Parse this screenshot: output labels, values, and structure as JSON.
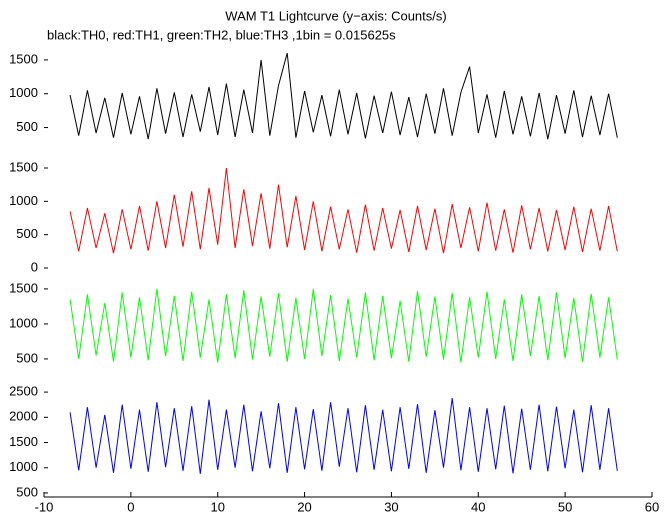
{
  "chart_data": [
    {
      "type": "line",
      "title": "WAM T1 Lightcurve (y−axis: Counts/s)",
      "subtitle": "black:TH0, red:TH1, green:TH2, blue:TH3 ,1bin = 0.015625s",
      "xlim": [
        -10,
        60
      ],
      "ylim": [
        50,
        1720
      ],
      "yticks": [
        500,
        1000,
        1500
      ],
      "x": [
        -7,
        -6,
        -5,
        -4,
        -3,
        -2,
        -1,
        0,
        1,
        2,
        3,
        4,
        5,
        6,
        7,
        8,
        9,
        10,
        11,
        12,
        13,
        14,
        15,
        16,
        17,
        18,
        19,
        20,
        21,
        22,
        23,
        24,
        25,
        26,
        27,
        28,
        29,
        30,
        31,
        32,
        33,
        34,
        35,
        36,
        37,
        38,
        39,
        40,
        41,
        42,
        43,
        44,
        45,
        46,
        47,
        48,
        49,
        50,
        51,
        52,
        53,
        54,
        55,
        56
      ],
      "series": [
        {
          "color": "#000000",
          "values": [
            980,
            380,
            1050,
            420,
            940,
            350,
            1010,
            400,
            960,
            330,
            1080,
            410,
            1020,
            360,
            990,
            440,
            1100,
            390,
            1150,
            360,
            1060,
            420,
            1500,
            380,
            1120,
            1600,
            350,
            1040,
            430,
            980,
            370,
            1060,
            400,
            1010,
            340,
            970,
            420,
            1030,
            390,
            950,
            360,
            1000,
            410,
            1080,
            380,
            1020,
            1400,
            420,
            990,
            350,
            1040,
            400,
            960,
            370,
            1010,
            330,
            980,
            410,
            1050,
            360,
            970,
            390,
            1000,
            350
          ]
        }
      ]
    },
    {
      "type": "line",
      "xlim": [
        -10,
        60
      ],
      "ylim": [
        -30,
        1650
      ],
      "yticks": [
        0,
        500,
        1000,
        1500
      ],
      "x": [
        -7,
        -6,
        -5,
        -4,
        -3,
        -2,
        -1,
        0,
        1,
        2,
        3,
        4,
        5,
        6,
        7,
        8,
        9,
        10,
        11,
        12,
        13,
        14,
        15,
        16,
        17,
        18,
        19,
        20,
        21,
        22,
        23,
        24,
        25,
        26,
        27,
        28,
        29,
        30,
        31,
        32,
        33,
        34,
        35,
        36,
        37,
        38,
        39,
        40,
        41,
        42,
        43,
        44,
        45,
        46,
        47,
        48,
        49,
        50,
        51,
        52,
        53,
        54,
        55,
        56
      ],
      "series": [
        {
          "color": "#ff0000",
          "values": [
            850,
            250,
            900,
            300,
            820,
            220,
            880,
            280,
            930,
            260,
            1000,
            300,
            1100,
            320,
            1150,
            280,
            1200,
            350,
            1500,
            300,
            1180,
            330,
            1120,
            290,
            1250,
            310,
            1080,
            270,
            1000,
            250,
            920,
            280,
            880,
            230,
            950,
            260,
            900,
            290,
            870,
            240,
            930,
            270,
            890,
            220,
            960,
            300,
            910,
            250,
            980,
            260,
            880,
            230,
            940,
            280,
            900,
            250,
            870,
            270,
            920,
            240,
            890,
            260,
            930,
            250
          ]
        }
      ]
    },
    {
      "type": "line",
      "xlim": [
        -10,
        60
      ],
      "ylim": [
        170,
        1770
      ],
      "yticks": [
        500,
        1000,
        1500
      ],
      "x": [
        -7,
        -6,
        -5,
        -4,
        -3,
        -2,
        -1,
        0,
        1,
        2,
        3,
        4,
        5,
        6,
        7,
        8,
        9,
        10,
        11,
        12,
        13,
        14,
        15,
        16,
        17,
        18,
        19,
        20,
        21,
        22,
        23,
        24,
        25,
        26,
        27,
        28,
        29,
        30,
        31,
        32,
        33,
        34,
        35,
        36,
        37,
        38,
        39,
        40,
        41,
        42,
        43,
        44,
        45,
        46,
        47,
        48,
        49,
        50,
        51,
        52,
        53,
        54,
        55,
        56
      ],
      "series": [
        {
          "color": "#00ff00",
          "values": [
            1350,
            500,
            1420,
            550,
            1300,
            460,
            1450,
            520,
            1380,
            480,
            1500,
            540,
            1400,
            470,
            1460,
            520,
            1350,
            450,
            1420,
            510,
            1480,
            490,
            1390,
            530,
            1440,
            460,
            1370,
            500,
            1500,
            540,
            1410,
            470,
            1360,
            520,
            1450,
            480,
            1400,
            510,
            1330,
            460,
            1470,
            530,
            1390,
            490,
            1440,
            450,
            1380,
            520,
            1460,
            500,
            1350,
            470,
            1420,
            540,
            1400,
            480,
            1450,
            510,
            1370,
            460,
            1430,
            520,
            1380,
            490
          ]
        }
      ]
    },
    {
      "type": "line",
      "xlim": [
        -10,
        60
      ],
      "ylim": [
        420,
        2700
      ],
      "yticks": [
        500,
        1000,
        1500,
        2000,
        2500
      ],
      "xticks": [
        -10,
        0,
        10,
        20,
        30,
        40,
        50,
        60
      ],
      "x": [
        -7,
        -6,
        -5,
        -4,
        -3,
        -2,
        -1,
        0,
        1,
        2,
        3,
        4,
        5,
        6,
        7,
        8,
        9,
        10,
        11,
        12,
        13,
        14,
        15,
        16,
        17,
        18,
        19,
        20,
        21,
        22,
        23,
        24,
        25,
        26,
        27,
        28,
        29,
        30,
        31,
        32,
        33,
        34,
        35,
        36,
        37,
        38,
        39,
        40,
        41,
        42,
        43,
        44,
        45,
        46,
        47,
        48,
        49,
        50,
        51,
        52,
        53,
        54,
        55,
        56
      ],
      "series": [
        {
          "color": "#0000ff",
          "values": [
            2100,
            950,
            2200,
            1000,
            2050,
            900,
            2250,
            980,
            2150,
            920,
            2300,
            1010,
            2180,
            940,
            2220,
            880,
            2350,
            960,
            2150,
            1000,
            2250,
            930,
            2120,
            990,
            2280,
            900,
            2200,
            970,
            2160,
            940,
            2300,
            1020,
            2180,
            910,
            2240,
            960,
            2150,
            930,
            2200,
            980,
            2260,
            900,
            2140,
            1000,
            2380,
            950,
            2200,
            920,
            2180,
            970,
            2230,
            890,
            2170,
            960,
            2250,
            930,
            2210,
            990,
            2150,
            910,
            2240,
            960,
            2180,
            940
          ]
        }
      ]
    }
  ]
}
